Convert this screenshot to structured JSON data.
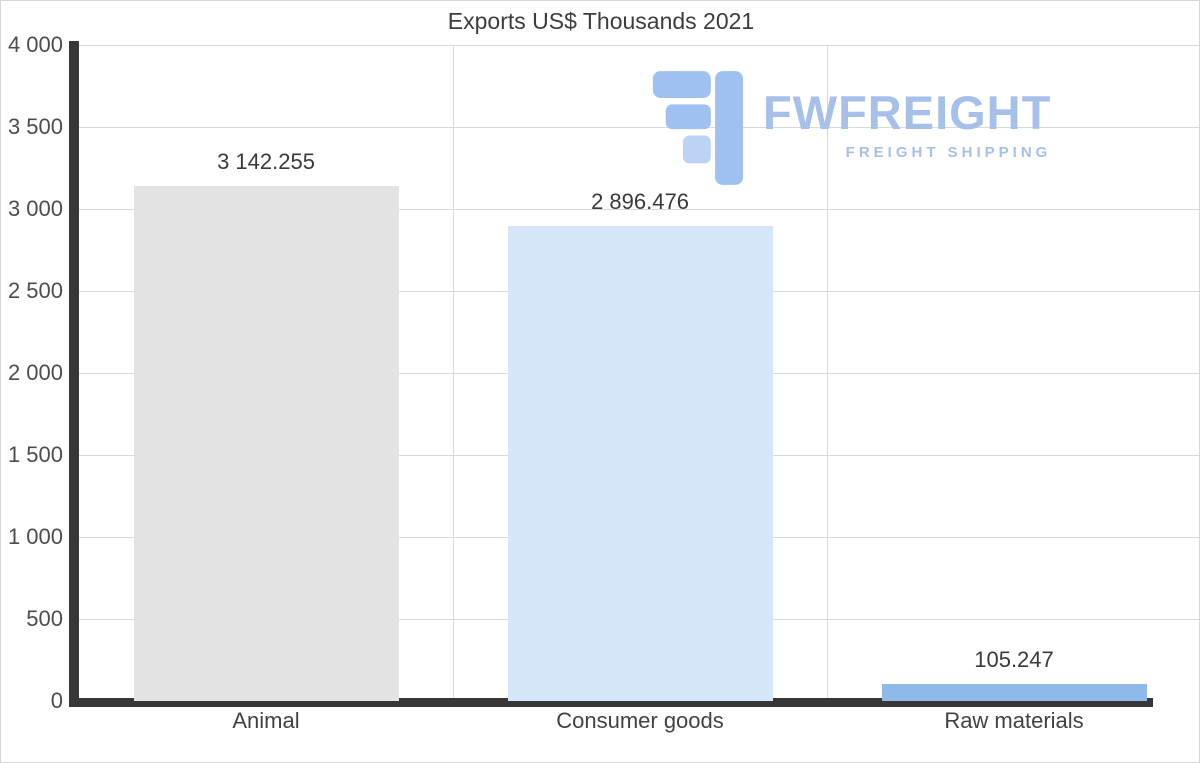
{
  "title": "Exports US$ Thousands 2021",
  "watermark": {
    "name": "FWFREIGHT",
    "tagline": "FREIGHT SHIPPING",
    "color": "#a6c0ea"
  },
  "chart_data": {
    "type": "bar",
    "title": "Exports US$ Thousands 2021",
    "categories": [
      "Animal",
      "Consumer goods",
      "Raw materials"
    ],
    "values": [
      3142.255,
      2896.476,
      105.247
    ],
    "value_labels": [
      "3 142.255",
      "2 896.476",
      "105.247"
    ],
    "bar_colors": [
      "#e3e3e3",
      "#d6e6fa",
      "#8fb9e9"
    ],
    "xlabel": "",
    "ylabel": "",
    "ylim": [
      0,
      4000
    ],
    "ytick_step": 500,
    "ytick_labels": [
      "0",
      "500",
      "1 000",
      "1 500",
      "2 000",
      "2 500",
      "3 000",
      "3 500",
      "4 000"
    ],
    "grid": "horizontal gridlines every 500, vertical gridlines at category boundaries",
    "legend_position": "none",
    "axis_color": "#373737",
    "gridline_color": "#d9d9d9"
  }
}
